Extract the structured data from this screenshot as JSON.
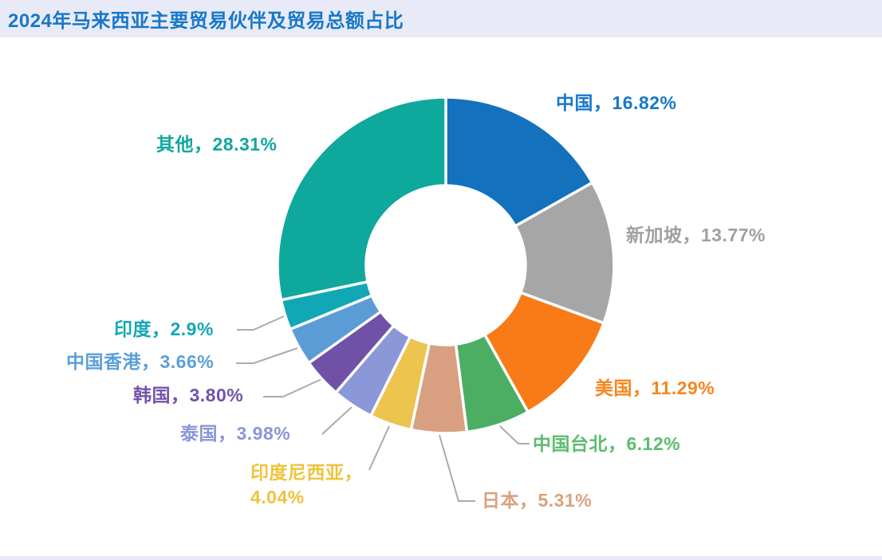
{
  "title": "2024年马来西亚主要贸易伙伴及贸易总额占比",
  "title_color": "#1878C8",
  "header_bg": "#E8EBF7",
  "leader_line_color": "#ABABAB",
  "chart_data": {
    "type": "pie",
    "subtype": "donut",
    "title": "2024年马来西亚主要贸易伙伴及贸易总额占比",
    "unit": "%",
    "start_angle": "12-o-clock",
    "direction": "clockwise",
    "legend_position": "outside-labels",
    "categories": [
      "中国",
      "新加坡",
      "美国",
      "中国台北",
      "日本",
      "印度尼西亚",
      "泰国",
      "韩国",
      "中国香港",
      "印度",
      "其他"
    ],
    "values": [
      16.82,
      13.77,
      11.29,
      6.12,
      5.31,
      4.04,
      3.98,
      3.8,
      3.66,
      2.9,
      28.31
    ],
    "slices": [
      {
        "key": "china",
        "name": "中国",
        "value": 16.82,
        "display": "中国，16.82%",
        "color": "#1371BD",
        "label_color": "#1878C8"
      },
      {
        "key": "singapore",
        "name": "新加坡",
        "value": 13.77,
        "display": "新加坡，13.77%",
        "color": "#A6A6A6",
        "label_color": "#9FA0A2"
      },
      {
        "key": "us",
        "name": "美国",
        "value": 11.29,
        "display": "美国，11.29%",
        "color": "#F87B17",
        "label_color": "#F6861F"
      },
      {
        "key": "taipei",
        "name": "中国台北",
        "value": 6.12,
        "display": "中国台北，6.12%",
        "color": "#4BAE63",
        "label_color": "#5CBD6E"
      },
      {
        "key": "japan",
        "name": "日本",
        "value": 5.31,
        "display": "日本，5.31%",
        "color": "#D8A080",
        "label_color": "#D9A17E"
      },
      {
        "key": "indonesia",
        "name": "印度尼西亚",
        "value": 4.04,
        "display": "印度尼西亚，4.04%",
        "color": "#ECC44E",
        "label_color": "#EFC33C"
      },
      {
        "key": "thailand",
        "name": "泰国",
        "value": 3.98,
        "display": "泰国，3.98%",
        "color": "#8B98D8",
        "label_color": "#8B96D9"
      },
      {
        "key": "korea",
        "name": "韩国",
        "value": 3.8,
        "display": "韩国，3.80%",
        "color": "#7051A8",
        "label_color": "#7253A9"
      },
      {
        "key": "hongkong",
        "name": "中国香港",
        "value": 3.66,
        "display": "中国香港，3.66%",
        "color": "#5C9CD6",
        "label_color": "#5C9FD9"
      },
      {
        "key": "india",
        "name": "印度",
        "value": 2.9,
        "display": "印度，2.9%",
        "color": "#12A7B5",
        "label_color": "#13A8B6"
      },
      {
        "key": "others",
        "name": "其他",
        "value": 28.31,
        "display": "其他，28.31%",
        "color": "#0FA89D",
        "label_color": "#10A89E"
      }
    ]
  }
}
